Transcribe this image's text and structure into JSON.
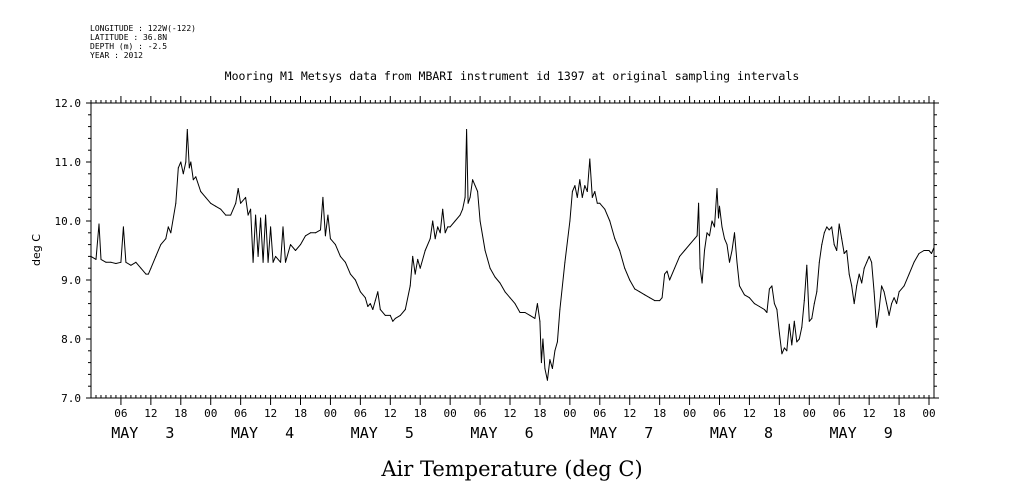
{
  "header": {
    "longitude": "LONGITUDE : 122W(-122)",
    "latitude": "LATITUDE : 36.8N",
    "depth": "DEPTH (m) : -2.5",
    "year": "YEAR : 2012"
  },
  "chart_data": {
    "type": "line",
    "title": "Mooring M1 Metsys data from MBARI instrument id 1397 at original sampling intervals",
    "xlabel": "Air Temperature (deg C)",
    "ylabel": "deg C",
    "ylim": [
      7.0,
      12.0
    ],
    "xlim_hours": [
      0,
      169
    ],
    "yticks": [
      "7.0",
      "8.0",
      "9.0",
      "10.0",
      "11.0",
      "12.0"
    ],
    "hour_ticks": [
      {
        "h": 6,
        "label": "06"
      },
      {
        "h": 12,
        "label": "12"
      },
      {
        "h": 18,
        "label": "18"
      },
      {
        "h": 24,
        "label": "00"
      },
      {
        "h": 30,
        "label": "06"
      },
      {
        "h": 36,
        "label": "12"
      },
      {
        "h": 42,
        "label": "18"
      },
      {
        "h": 48,
        "label": "00"
      },
      {
        "h": 54,
        "label": "06"
      },
      {
        "h": 60,
        "label": "12"
      },
      {
        "h": 66,
        "label": "18"
      },
      {
        "h": 72,
        "label": "00"
      },
      {
        "h": 78,
        "label": "06"
      },
      {
        "h": 84,
        "label": "12"
      },
      {
        "h": 90,
        "label": "18"
      },
      {
        "h": 96,
        "label": "00"
      },
      {
        "h": 102,
        "label": "06"
      },
      {
        "h": 108,
        "label": "12"
      },
      {
        "h": 114,
        "label": "18"
      },
      {
        "h": 120,
        "label": "00"
      },
      {
        "h": 126,
        "label": "06"
      },
      {
        "h": 132,
        "label": "12"
      },
      {
        "h": 138,
        "label": "18"
      },
      {
        "h": 144,
        "label": "00"
      },
      {
        "h": 150,
        "label": "06"
      },
      {
        "h": 156,
        "label": "12"
      },
      {
        "h": 162,
        "label": "18"
      },
      {
        "h": 168,
        "label": "00"
      }
    ],
    "day_labels": [
      {
        "h": 12,
        "label": "MAY   3"
      },
      {
        "h": 36,
        "label": "MAY   4"
      },
      {
        "h": 60,
        "label": "MAY   5"
      },
      {
        "h": 84,
        "label": "MAY   6"
      },
      {
        "h": 108,
        "label": "MAY   7"
      },
      {
        "h": 132,
        "label": "MAY   8"
      },
      {
        "h": 156,
        "label": "MAY   9"
      }
    ],
    "series": [
      {
        "name": "Air Temperature",
        "points": [
          [
            0,
            9.4
          ],
          [
            1,
            9.35
          ],
          [
            1.6,
            9.95
          ],
          [
            2,
            9.35
          ],
          [
            3,
            9.3
          ],
          [
            4,
            9.3
          ],
          [
            5,
            9.28
          ],
          [
            6,
            9.3
          ],
          [
            6.5,
            9.9
          ],
          [
            7,
            9.3
          ],
          [
            8,
            9.25
          ],
          [
            9,
            9.3
          ],
          [
            10,
            9.2
          ],
          [
            11,
            9.1
          ],
          [
            11.5,
            9.1
          ],
          [
            12,
            9.2
          ],
          [
            13,
            9.4
          ],
          [
            14,
            9.6
          ],
          [
            15,
            9.7
          ],
          [
            15.5,
            9.9
          ],
          [
            16,
            9.8
          ],
          [
            17,
            10.3
          ],
          [
            17.5,
            10.9
          ],
          [
            18,
            11.0
          ],
          [
            18.5,
            10.8
          ],
          [
            19,
            11.0
          ],
          [
            19.3,
            11.55
          ],
          [
            19.7,
            10.9
          ],
          [
            20,
            11.0
          ],
          [
            20.5,
            10.7
          ],
          [
            21,
            10.75
          ],
          [
            22,
            10.5
          ],
          [
            23,
            10.4
          ],
          [
            24,
            10.3
          ],
          [
            25,
            10.25
          ],
          [
            26,
            10.2
          ],
          [
            27,
            10.1
          ],
          [
            28,
            10.1
          ],
          [
            29,
            10.3
          ],
          [
            29.5,
            10.55
          ],
          [
            30,
            10.3
          ],
          [
            31,
            10.4
          ],
          [
            31.5,
            10.1
          ],
          [
            32,
            10.2
          ],
          [
            32.5,
            9.3
          ],
          [
            33,
            10.1
          ],
          [
            33.5,
            9.4
          ],
          [
            34,
            10.05
          ],
          [
            34.5,
            9.3
          ],
          [
            35,
            10.1
          ],
          [
            35.5,
            9.3
          ],
          [
            36,
            9.9
          ],
          [
            36.5,
            9.3
          ],
          [
            37,
            9.4
          ],
          [
            38,
            9.3
          ],
          [
            38.5,
            9.9
          ],
          [
            39,
            9.3
          ],
          [
            40,
            9.6
          ],
          [
            41,
            9.5
          ],
          [
            42,
            9.6
          ],
          [
            43,
            9.75
          ],
          [
            44,
            9.8
          ],
          [
            45,
            9.8
          ],
          [
            46,
            9.85
          ],
          [
            46.5,
            10.4
          ],
          [
            47,
            9.75
          ],
          [
            47.5,
            10.1
          ],
          [
            48,
            9.7
          ],
          [
            49,
            9.6
          ],
          [
            50,
            9.4
          ],
          [
            51,
            9.3
          ],
          [
            52,
            9.1
          ],
          [
            53,
            9.0
          ],
          [
            54,
            8.8
          ],
          [
            55,
            8.7
          ],
          [
            55.5,
            8.55
          ],
          [
            56,
            8.6
          ],
          [
            56.5,
            8.5
          ],
          [
            57,
            8.65
          ],
          [
            57.5,
            8.8
          ],
          [
            58,
            8.5
          ],
          [
            59,
            8.4
          ],
          [
            60,
            8.4
          ],
          [
            60.5,
            8.3
          ],
          [
            61,
            8.35
          ],
          [
            62,
            8.4
          ],
          [
            63,
            8.5
          ],
          [
            64,
            8.9
          ],
          [
            64.5,
            9.4
          ],
          [
            65,
            9.1
          ],
          [
            65.5,
            9.35
          ],
          [
            66,
            9.2
          ],
          [
            67,
            9.5
          ],
          [
            68,
            9.7
          ],
          [
            68.5,
            10.0
          ],
          [
            69,
            9.7
          ],
          [
            69.5,
            9.9
          ],
          [
            70,
            9.8
          ],
          [
            70.5,
            10.2
          ],
          [
            71,
            9.8
          ],
          [
            71.5,
            9.9
          ],
          [
            72,
            9.9
          ],
          [
            73,
            10.0
          ],
          [
            74,
            10.1
          ],
          [
            74.5,
            10.2
          ],
          [
            75,
            10.4
          ],
          [
            75.3,
            11.55
          ],
          [
            75.6,
            10.3
          ],
          [
            76,
            10.4
          ],
          [
            76.5,
            10.7
          ],
          [
            77,
            10.6
          ],
          [
            77.5,
            10.5
          ],
          [
            78,
            10.0
          ],
          [
            79,
            9.5
          ],
          [
            80,
            9.2
          ],
          [
            81,
            9.05
          ],
          [
            82,
            8.95
          ],
          [
            83,
            8.8
          ],
          [
            84,
            8.7
          ],
          [
            85,
            8.6
          ],
          [
            86,
            8.45
          ],
          [
            87,
            8.45
          ],
          [
            88,
            8.4
          ],
          [
            89,
            8.35
          ],
          [
            89.5,
            8.6
          ],
          [
            90,
            8.3
          ],
          [
            90.3,
            7.6
          ],
          [
            90.6,
            8.0
          ],
          [
            91,
            7.5
          ],
          [
            91.5,
            7.3
          ],
          [
            92,
            7.65
          ],
          [
            92.5,
            7.5
          ],
          [
            93,
            7.8
          ],
          [
            93.5,
            7.95
          ],
          [
            94,
            8.5
          ],
          [
            95,
            9.3
          ],
          [
            96,
            10.0
          ],
          [
            96.5,
            10.5
          ],
          [
            97,
            10.6
          ],
          [
            97.5,
            10.4
          ],
          [
            98,
            10.7
          ],
          [
            98.5,
            10.4
          ],
          [
            99,
            10.6
          ],
          [
            99.5,
            10.5
          ],
          [
            100,
            11.05
          ],
          [
            100.5,
            10.4
          ],
          [
            101,
            10.5
          ],
          [
            101.5,
            10.3
          ],
          [
            102,
            10.3
          ],
          [
            103,
            10.2
          ],
          [
            104,
            10.0
          ],
          [
            105,
            9.7
          ],
          [
            106,
            9.5
          ],
          [
            107,
            9.2
          ],
          [
            108,
            9.0
          ],
          [
            109,
            8.85
          ],
          [
            110,
            8.8
          ],
          [
            111,
            8.75
          ],
          [
            112,
            8.7
          ],
          [
            113,
            8.65
          ],
          [
            114,
            8.65
          ],
          [
            114.5,
            8.7
          ],
          [
            115,
            9.1
          ],
          [
            115.5,
            9.15
          ],
          [
            116,
            9.0
          ],
          [
            117,
            9.2
          ],
          [
            118,
            9.4
          ],
          [
            119,
            9.5
          ],
          [
            120,
            9.6
          ],
          [
            121,
            9.7
          ],
          [
            121.5,
            9.75
          ],
          [
            121.8,
            10.3
          ],
          [
            122.1,
            9.2
          ],
          [
            122.5,
            8.95
          ],
          [
            123,
            9.5
          ],
          [
            123.5,
            9.8
          ],
          [
            124,
            9.75
          ],
          [
            124.5,
            10.0
          ],
          [
            125,
            9.9
          ],
          [
            125.5,
            10.55
          ],
          [
            125.8,
            10.05
          ],
          [
            126,
            10.25
          ],
          [
            126.5,
            9.9
          ],
          [
            127,
            9.7
          ],
          [
            127.5,
            9.6
          ],
          [
            128,
            9.3
          ],
          [
            128.5,
            9.5
          ],
          [
            129,
            9.8
          ],
          [
            129.5,
            9.3
          ],
          [
            130,
            8.9
          ],
          [
            131,
            8.75
          ],
          [
            132,
            8.7
          ],
          [
            133,
            8.6
          ],
          [
            134,
            8.55
          ],
          [
            135,
            8.5
          ],
          [
            135.5,
            8.45
          ],
          [
            136,
            8.85
          ],
          [
            136.5,
            8.9
          ],
          [
            137,
            8.6
          ],
          [
            137.5,
            8.5
          ],
          [
            138,
            8.1
          ],
          [
            138.5,
            7.75
          ],
          [
            139,
            7.85
          ],
          [
            139.5,
            7.8
          ],
          [
            140,
            8.25
          ],
          [
            140.5,
            7.9
          ],
          [
            141,
            8.3
          ],
          [
            141.5,
            7.95
          ],
          [
            142,
            8.0
          ],
          [
            142.5,
            8.2
          ],
          [
            143,
            8.65
          ],
          [
            143.5,
            9.25
          ],
          [
            144,
            8.3
          ],
          [
            144.5,
            8.35
          ],
          [
            145,
            8.6
          ],
          [
            145.5,
            8.8
          ],
          [
            146,
            9.3
          ],
          [
            146.5,
            9.6
          ],
          [
            147,
            9.8
          ],
          [
            147.5,
            9.9
          ],
          [
            148,
            9.85
          ],
          [
            148.5,
            9.9
          ],
          [
            149,
            9.6
          ],
          [
            149.5,
            9.5
          ],
          [
            150,
            9.95
          ],
          [
            150.5,
            9.7
          ],
          [
            151,
            9.45
          ],
          [
            151.5,
            9.5
          ],
          [
            152,
            9.1
          ],
          [
            152.5,
            8.9
          ],
          [
            153,
            8.6
          ],
          [
            153.5,
            8.9
          ],
          [
            154,
            9.1
          ],
          [
            154.5,
            8.95
          ],
          [
            155,
            9.2
          ],
          [
            155.5,
            9.3
          ],
          [
            156,
            9.4
          ],
          [
            156.5,
            9.3
          ],
          [
            157,
            8.8
          ],
          [
            157.5,
            8.2
          ],
          [
            158,
            8.5
          ],
          [
            158.5,
            8.9
          ],
          [
            159,
            8.8
          ],
          [
            159.5,
            8.6
          ],
          [
            160,
            8.4
          ],
          [
            160.5,
            8.6
          ],
          [
            161,
            8.7
          ],
          [
            161.5,
            8.6
          ],
          [
            162,
            8.8
          ],
          [
            163,
            8.9
          ],
          [
            164,
            9.1
          ],
          [
            165,
            9.3
          ],
          [
            166,
            9.45
          ],
          [
            167,
            9.5
          ],
          [
            168,
            9.5
          ],
          [
            168.5,
            9.45
          ],
          [
            169,
            9.55
          ]
        ]
      }
    ]
  }
}
